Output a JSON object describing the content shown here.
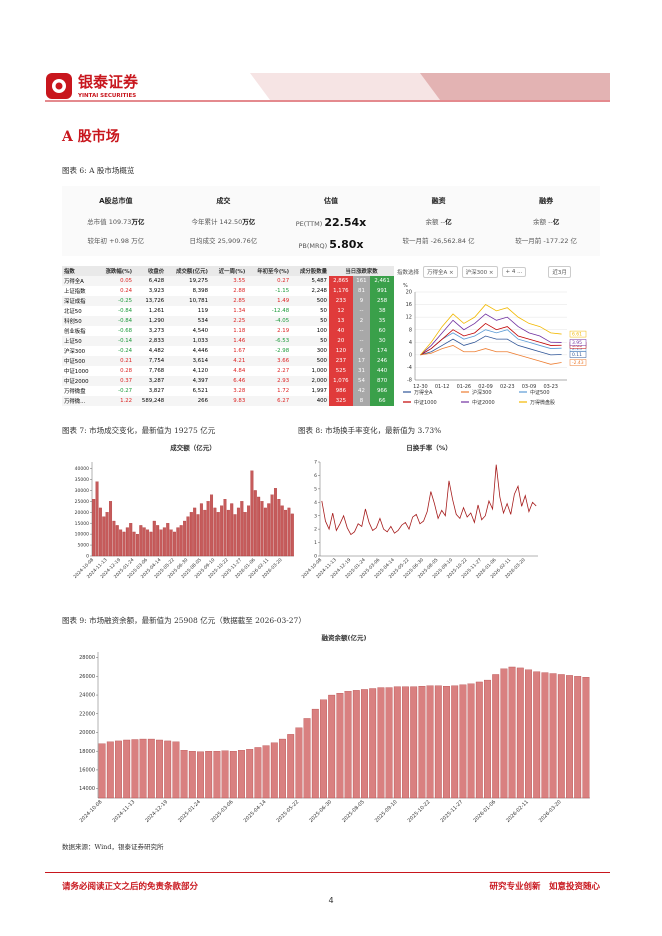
{
  "header": {
    "logo_cn": "银泰证券",
    "logo_en": "YINTAI SECURITIES"
  },
  "section_title": "A 股市场",
  "fig6_caption": "图表 6: A 股市场概览",
  "summary": [
    {
      "title": "A股总市值",
      "lines": [
        {
          "label": "总市值",
          "value": "109.73",
          "unit": "万亿"
        },
        {
          "label": "较年初",
          "value": "+0.98 万亿"
        }
      ]
    },
    {
      "title": "成交",
      "lines": [
        {
          "label": "今年累计",
          "value": "142.50",
          "unit": "万亿"
        },
        {
          "label": "日均成交",
          "value": "25,909.76亿"
        }
      ]
    },
    {
      "title": "估值",
      "lines": [
        {
          "label": "PE(TTM)",
          "value": "22.54x"
        },
        {
          "label": "PB(MRQ)",
          "value": "5.80x"
        }
      ]
    },
    {
      "title": "融资",
      "lines": [
        {
          "label": "余额",
          "value": "--",
          "unit": "亿"
        },
        {
          "label": "较一月前",
          "value": "-26,562.84 亿"
        }
      ]
    },
    {
      "title": "融券",
      "lines": [
        {
          "label": "余额",
          "value": "--",
          "unit": "亿"
        },
        {
          "label": "较一月前",
          "value": "-177.22 亿"
        }
      ]
    }
  ],
  "market_table": {
    "columns": [
      "指数",
      "涨跌幅(%)",
      "收盘价",
      "成交额(亿元)",
      "近一周(%)",
      "年初至今(%)",
      "成分股数量",
      "当日涨跌家数"
    ],
    "rows": [
      [
        "万得全A",
        "0.05",
        "6,428",
        "19,275",
        "3.55",
        "0.27",
        "5,487",
        "2,865",
        "161",
        "2,461"
      ],
      [
        "上证指数",
        "0.24",
        "3,923",
        "8,398",
        "2.88",
        "-1.15",
        "2,248",
        "1,176",
        "81",
        "991"
      ],
      [
        "深证成指",
        "-0.25",
        "13,726",
        "10,781",
        "2.85",
        "1.49",
        "500",
        "233",
        "9",
        "258"
      ],
      [
        "北证50",
        "-0.84",
        "1,261",
        "119",
        "1.34",
        "-12.48",
        "50",
        "12",
        "--",
        "38"
      ],
      [
        "科创50",
        "-0.84",
        "1,290",
        "534",
        "2.25",
        "-4.05",
        "50",
        "13",
        "2",
        "35"
      ],
      [
        "创业板指",
        "-0.68",
        "3,273",
        "4,540",
        "1.18",
        "2.19",
        "100",
        "40",
        "--",
        "60"
      ],
      [
        "上证50",
        "-0.14",
        "2,833",
        "1,033",
        "1.46",
        "-6.53",
        "50",
        "20",
        "--",
        "30"
      ],
      [
        "沪深300",
        "-0.24",
        "4,482",
        "4,446",
        "1.67",
        "-2.98",
        "300",
        "120",
        "6",
        "174"
      ],
      [
        "中证500",
        "0.21",
        "7,754",
        "3,614",
        "4.21",
        "3.66",
        "500",
        "237",
        "17",
        "246"
      ],
      [
        "中证1000",
        "0.28",
        "7,768",
        "4,120",
        "4.84",
        "2.27",
        "1,000",
        "525",
        "31",
        "440"
      ],
      [
        "中证2000",
        "0.37",
        "3,287",
        "4,397",
        "6.46",
        "2.93",
        "2,000",
        "1,076",
        "54",
        "870"
      ],
      [
        "万得微盘",
        "-0.27",
        "3,827",
        "6,521",
        "3.28",
        "1.72",
        "1,997",
        "986",
        "42",
        "966"
      ],
      [
        "万得微...",
        "1.22",
        "589,248",
        "266",
        "9.83",
        "6.27",
        "400",
        "325",
        "8",
        "66"
      ]
    ]
  },
  "index_chart_controls": {
    "label": "指数选择",
    "chips": [
      "万得全A ×",
      "沪深300 ×",
      "+ 4 ..."
    ],
    "period": "近3月"
  },
  "fig7_caption": "图表 7: 市场成交变化，最新值为 19275 亿元",
  "fig8_caption": "图表 8: 市场换手率变化，最新值为 3.73%",
  "fig9_caption": "图表 9: 市场融资余额，最新值为 25908 亿元（数据截至 2026-03-27）",
  "source": "数据来源：Wind，银泰证券研究所",
  "footer": {
    "disclaimer": "请务必阅读正文之后的免责条款部分",
    "slogan": "研究专业创新　如意投资随心",
    "page": "4"
  },
  "chart_data": [
    {
      "type": "line",
      "y_label": "%",
      "categories": [
        "12-30",
        null,
        "01-12",
        null,
        "01-26",
        null,
        "02-09",
        null,
        "02-23",
        null,
        "03-09",
        null,
        "03-23",
        null
      ],
      "ylim": [
        -8,
        20
      ],
      "yticks": [
        -8,
        -4,
        0,
        4,
        8,
        12,
        16,
        20
      ],
      "grid": true,
      "end_labels": true,
      "series": [
        {
          "name": "万得全A",
          "color": "#2f5597",
          "values": [
            0,
            1,
            3,
            5,
            3,
            4,
            6,
            5,
            5,
            3,
            2,
            1,
            0,
            0.11
          ]
        },
        {
          "name": "沪深300",
          "color": "#ed7d31",
          "values": [
            0,
            0.5,
            2,
            3,
            1,
            1,
            2,
            1,
            1,
            0,
            -1,
            -2,
            -3,
            -2.43
          ]
        },
        {
          "name": "中证500",
          "color": "#5b9bd5",
          "values": [
            0,
            2,
            5,
            7,
            5,
            6,
            8,
            7,
            8,
            5,
            4,
            3,
            2,
            2.13
          ]
        },
        {
          "name": "中证1000",
          "color": "#c00000",
          "values": [
            0,
            2,
            5,
            8,
            6,
            7,
            10,
            8,
            9,
            6,
            5,
            4,
            3,
            3.05
          ]
        },
        {
          "name": "中证2000",
          "color": "#7030a0",
          "values": [
            0,
            3,
            7,
            11,
            8,
            10,
            13,
            11,
            12,
            9,
            7,
            6,
            4,
            3.95
          ]
        },
        {
          "name": "万得微盘股",
          "color": "#f2b800",
          "values": [
            0,
            4,
            9,
            13,
            10,
            12,
            16,
            14,
            15,
            12,
            10,
            9,
            7,
            6.61
          ]
        }
      ]
    },
    {
      "type": "bar",
      "title": "成交额（亿元）",
      "color": "#c65b5b",
      "grid": false,
      "ylim": [
        0,
        43000
      ],
      "yticks": [
        0,
        5000,
        10000,
        15000,
        20000,
        25000,
        30000,
        35000,
        40000
      ],
      "categories": [
        "2024-10-08",
        null,
        null,
        null,
        "2024-11-13",
        null,
        null,
        null,
        "2024-12-19",
        null,
        null,
        null,
        "2025-01-24",
        null,
        null,
        null,
        "2025-03-06",
        null,
        null,
        null,
        "2025-04-14",
        null,
        null,
        null,
        "2025-05-22",
        null,
        null,
        null,
        "2025-06-30",
        null,
        null,
        null,
        "2025-08-05",
        null,
        null,
        null,
        "2025-09-10",
        null,
        null,
        null,
        "2025-10-22",
        null,
        null,
        null,
        "2025-11-27",
        null,
        null,
        null,
        "2026-01-06",
        null,
        null,
        null,
        "2026-02-11",
        null,
        null,
        null,
        "2026-03-20",
        null,
        null,
        null
      ],
      "values": [
        26000,
        34000,
        22000,
        18000,
        20000,
        25000,
        16000,
        14000,
        12000,
        11000,
        13000,
        15000,
        11000,
        10000,
        14000,
        13000,
        12000,
        11000,
        16000,
        14000,
        12000,
        13000,
        15000,
        12000,
        11000,
        13000,
        14000,
        16000,
        18000,
        20000,
        22000,
        19000,
        24000,
        21000,
        25000,
        28000,
        22000,
        20000,
        23000,
        26000,
        21000,
        24000,
        19000,
        22000,
        25000,
        20000,
        23000,
        39000,
        30000,
        27000,
        25000,
        22000,
        24000,
        28000,
        31000,
        26000,
        23000,
        21000,
        22000,
        19275
      ]
    },
    {
      "type": "line",
      "title": "日换手率（%）",
      "color": "#a61c1c",
      "grid": false,
      "ylim": [
        0,
        7
      ],
      "yticks": [
        0,
        1,
        2,
        3,
        4,
        5,
        6,
        7
      ],
      "categories": [
        "2024-10-08",
        null,
        null,
        null,
        "2024-11-13",
        null,
        null,
        null,
        "2024-12-19",
        null,
        null,
        null,
        "2025-01-24",
        null,
        null,
        null,
        "2025-03-06",
        null,
        null,
        null,
        "2025-04-14",
        null,
        null,
        null,
        "2025-05-22",
        null,
        null,
        null,
        "2025-06-30",
        null,
        null,
        null,
        "2025-08-05",
        null,
        null,
        null,
        "2025-09-10",
        null,
        null,
        null,
        "2025-10-22",
        null,
        null,
        null,
        "2025-11-27",
        null,
        null,
        null,
        "2026-01-06",
        null,
        null,
        null,
        "2026-02-11",
        null,
        null,
        null,
        "2026-03-20",
        null,
        null,
        null
      ],
      "values": [
        4.1,
        2.6,
        2.0,
        3.2,
        1.9,
        2.4,
        3.0,
        2.1,
        1.6,
        1.8,
        2.4,
        2.2,
        3.5,
        2.5,
        1.9,
        2.1,
        2.8,
        2.0,
        1.8,
        2.2,
        1.7,
        1.9,
        2.3,
        2.5,
        2.0,
        2.9,
        3.1,
        2.4,
        2.6,
        3.3,
        4.8,
        3.9,
        2.8,
        3.4,
        3.0,
        5.6,
        4.2,
        3.1,
        2.8,
        3.6,
        2.9,
        3.2,
        2.5,
        3.8,
        2.7,
        3.0,
        4.1,
        3.5,
        6.8,
        4.4,
        3.2,
        3.9,
        3.1,
        4.6,
        5.2,
        3.7,
        4.5,
        3.3,
        4.0,
        3.73
      ]
    },
    {
      "type": "bar",
      "title": "融资余额(亿元)",
      "color": "#d98080",
      "grid": false,
      "ylim": [
        13000,
        28600
      ],
      "yticks": [
        14000,
        16000,
        18000,
        20000,
        22000,
        24000,
        26000,
        28000
      ],
      "categories": [
        "2024-10-08",
        null,
        null,
        null,
        "2024-11-13",
        null,
        null,
        null,
        "2024-12-19",
        null,
        null,
        null,
        "2025-01-24",
        null,
        null,
        null,
        "2025-03-06",
        null,
        null,
        null,
        "2025-04-14",
        null,
        null,
        null,
        "2025-05-22",
        null,
        null,
        null,
        "2025-06-30",
        null,
        null,
        null,
        "2025-08-05",
        null,
        null,
        null,
        "2025-09-10",
        null,
        null,
        null,
        "2025-10-22",
        null,
        null,
        null,
        "2025-11-27",
        null,
        null,
        null,
        "2026-01-06",
        null,
        null,
        null,
        "2026-02-11",
        null,
        null,
        null,
        "2026-03-20",
        null,
        null,
        null
      ],
      "values": [
        18800,
        19000,
        19100,
        19200,
        19250,
        19300,
        19300,
        19200,
        19100,
        19000,
        18100,
        18000,
        17950,
        18000,
        18000,
        18050,
        18000,
        18100,
        18200,
        18400,
        18600,
        18900,
        19300,
        19800,
        20500,
        21500,
        22500,
        23500,
        24000,
        24200,
        24400,
        24500,
        24600,
        24700,
        24800,
        24800,
        24900,
        24900,
        24900,
        24950,
        25000,
        25000,
        24950,
        25000,
        25100,
        25200,
        25400,
        25600,
        26200,
        26800,
        27000,
        26900,
        26700,
        26500,
        26400,
        26300,
        26200,
        26100,
        26000,
        25908
      ]
    }
  ]
}
